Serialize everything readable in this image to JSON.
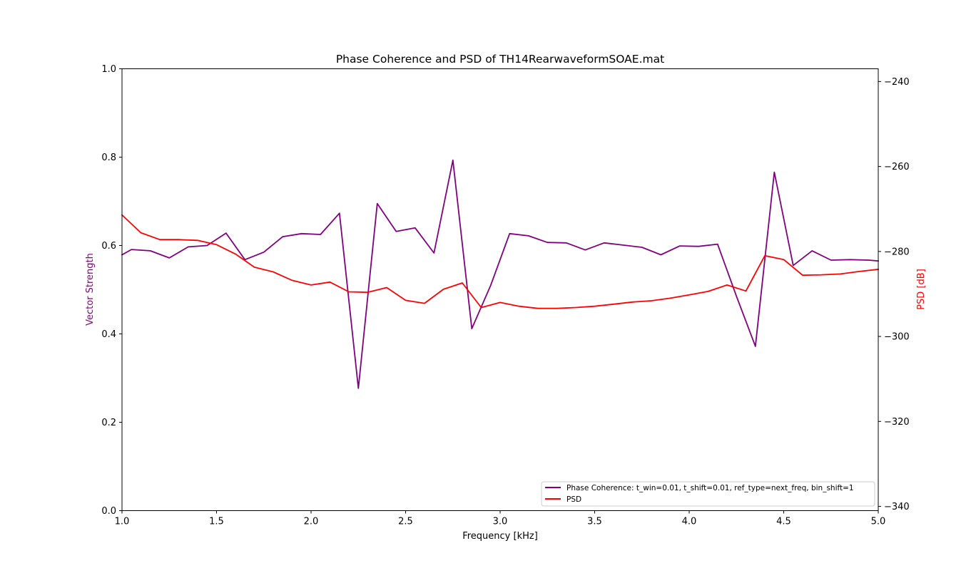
{
  "chart_data": {
    "type": "line",
    "title": "Phase Coherence and PSD of TH14RearwaveformSOAE.mat",
    "xlabel": "Frequency [kHz]",
    "ylabel_left": "Vector Strength",
    "ylabel_right": "PSD [dB]",
    "xlim": [
      1.0,
      5.0
    ],
    "ylim_left": [
      0.0,
      1.0
    ],
    "ylim_right": [
      -341,
      -237
    ],
    "xticks": [
      "1.0",
      "1.5",
      "2.0",
      "2.5",
      "3.0",
      "3.5",
      "4.0",
      "4.5",
      "5.0"
    ],
    "yticks_left": [
      "0.0",
      "0.2",
      "0.4",
      "0.6",
      "0.8",
      "1.0"
    ],
    "yticks_right": [
      "−340",
      "−320",
      "−300",
      "−280",
      "−260",
      "−240"
    ],
    "grid": false,
    "legend_position": "bottom-right",
    "series": [
      {
        "name": "Phase Coherence: t_win=0.01, t_shift=0.01, ref_type=next_freq, bin_shift=1",
        "axis": "left",
        "color": "#800080",
        "x": [
          1.0,
          1.05,
          1.15,
          1.25,
          1.35,
          1.45,
          1.55,
          1.65,
          1.75,
          1.85,
          1.95,
          2.05,
          2.15,
          2.25,
          2.35,
          2.45,
          2.55,
          2.65,
          2.75,
          2.85,
          2.95,
          3.05,
          3.15,
          3.25,
          3.35,
          3.45,
          3.55,
          3.65,
          3.75,
          3.85,
          3.95,
          4.05,
          4.15,
          4.25,
          4.35,
          4.45,
          4.55,
          4.65,
          4.75,
          4.85,
          4.95,
          5.0
        ],
        "values": [
          0.579,
          0.591,
          0.588,
          0.572,
          0.597,
          0.6,
          0.628,
          0.568,
          0.585,
          0.62,
          0.627,
          0.625,
          0.673,
          0.277,
          0.695,
          0.632,
          0.64,
          0.583,
          0.793,
          0.412,
          0.51,
          0.627,
          0.622,
          0.607,
          0.606,
          0.59,
          0.606,
          0.601,
          0.596,
          0.579,
          0.599,
          0.598,
          0.603,
          0.485,
          0.372,
          0.766,
          0.555,
          0.588,
          0.567,
          0.568,
          0.567,
          0.565
        ]
      },
      {
        "name": "PSD",
        "axis": "right",
        "color": "#ff0000",
        "x": [
          1.0,
          1.1,
          1.2,
          1.3,
          1.4,
          1.5,
          1.6,
          1.7,
          1.8,
          1.9,
          2.0,
          2.1,
          2.2,
          2.3,
          2.4,
          2.5,
          2.6,
          2.7,
          2.8,
          2.9,
          3.0,
          3.1,
          3.2,
          3.3,
          3.4,
          3.5,
          3.6,
          3.7,
          3.8,
          3.9,
          4.0,
          4.1,
          4.2,
          4.3,
          4.4,
          4.5,
          4.6,
          4.7,
          4.8,
          4.9,
          5.0
        ],
        "values": [
          -271.4,
          -275.6,
          -277.2,
          -277.2,
          -277.4,
          -278.4,
          -280.6,
          -283.7,
          -284.8,
          -286.8,
          -287.9,
          -287.2,
          -289.5,
          -289.6,
          -288.5,
          -291.5,
          -292.2,
          -288.9,
          -287.4,
          -293.2,
          -292.0,
          -292.9,
          -293.4,
          -293.4,
          -293.2,
          -292.9,
          -292.4,
          -291.9,
          -291.6,
          -291.0,
          -290.2,
          -289.4,
          -287.9,
          -289.3,
          -281.0,
          -281.9,
          -285.6,
          -285.5,
          -285.3,
          -284.7,
          -284.2
        ]
      }
    ]
  }
}
